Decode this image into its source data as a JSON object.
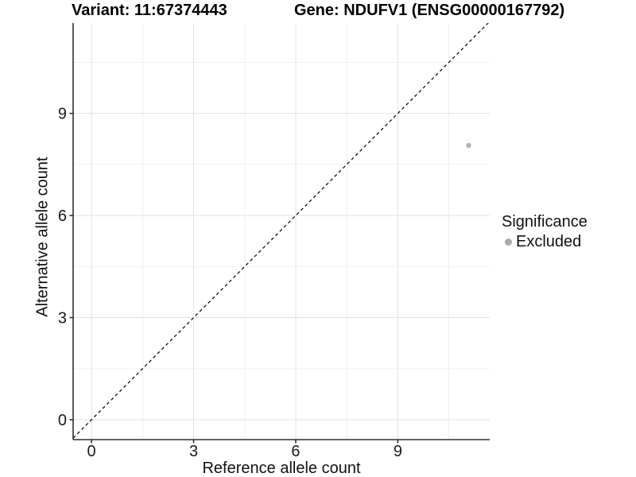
{
  "title": {
    "variant": "Variant: 11:67374443",
    "gene": "Gene: NDUFV1 (ENSG00000167792)"
  },
  "axes": {
    "x": {
      "label": "Reference allele count"
    },
    "y": {
      "label": "Alternative allele count"
    }
  },
  "legend": {
    "title": "Significance",
    "position": "right",
    "items": [
      {
        "label": "Excluded",
        "color": "#ababab",
        "shape": "circle"
      }
    ]
  },
  "chart_data": {
    "type": "scatter",
    "title": "Variant: 11:67374443   Gene: NDUFV1 (ENSG00000167792)",
    "xlabel": "Reference allele count",
    "ylabel": "Alternative allele count",
    "xlim": [
      -0.54,
      11.7
    ],
    "ylim": [
      -0.585,
      11.655
    ],
    "x_ticks": [
      0,
      3,
      6,
      9
    ],
    "y_ticks": [
      0,
      3,
      6,
      9
    ],
    "x_minor_ticks": [
      1.5,
      4.5,
      7.5,
      10.5
    ],
    "y_minor_ticks": [
      1.5,
      4.5,
      7.5,
      10.5
    ],
    "grid": {
      "major": true,
      "minor": true,
      "major_color": "#e2e2e2",
      "minor_color": "#f0f0f0"
    },
    "series": [
      {
        "name": "Excluded",
        "color": "#b2b2b2",
        "point_radius": 3.2,
        "points": [
          {
            "x": 11,
            "y": 8,
            "display_x": 11.08,
            "display_y": 8.06
          }
        ]
      }
    ],
    "reference_line": {
      "type": "identity",
      "slope": 1,
      "intercept": 0,
      "style": "dashed",
      "dash": [
        4,
        3.5
      ],
      "color": "#111111"
    },
    "background": "#ffffff",
    "axis_color": "#2f2f2f",
    "tick_label_color": "#1a1a1a",
    "legend_position": "right"
  }
}
